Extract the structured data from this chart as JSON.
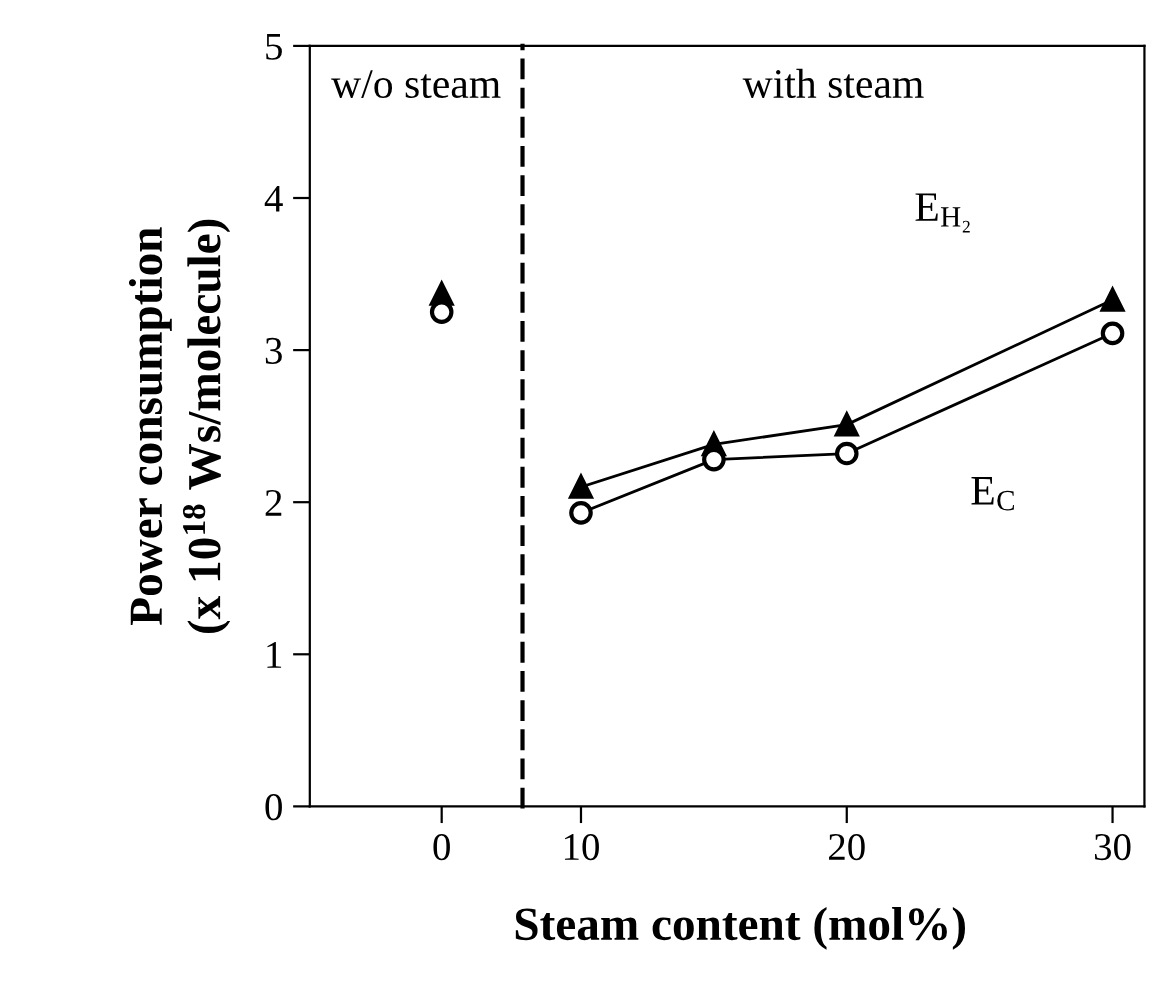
{
  "chart_data": [
    {
      "type": "scatter",
      "categories": [
        "0"
      ],
      "ylabel": "Power consumption\n(x 10$^{18}$ Ws/molecule)",
      "ylim": [
        0,
        5
      ],
      "yticks": [
        0,
        1,
        2,
        3,
        4,
        5
      ],
      "annotations": [
        "w/o steam"
      ],
      "series": [
        {
          "color": "#000000",
          "marker": "triangle",
          "values": [
            3.37
          ]
        },
        {
          "color": "#000000",
          "marker": "circle",
          "values": [
            3.25
          ]
        }
      ]
    },
    {
      "type": "line",
      "x": [
        10,
        15,
        20,
        30
      ],
      "xlim": [
        7.8,
        31.2
      ],
      "xticks": [
        10,
        20,
        30
      ],
      "ylim": [
        0,
        5
      ],
      "tick_labels": "x",
      "xlabel": "Steam content (mol%)",
      "annotations": [
        "with steam"
      ],
      "series": [
        {
          "name": "E$_{H₂}$",
          "color": "#000000",
          "marker": "triangle",
          "values": [
            2.1,
            2.38,
            2.51,
            3.33
          ]
        },
        {
          "name": "E$_{C}$",
          "color": "#000000",
          "marker": "circle",
          "values": [
            1.93,
            2.28,
            2.32,
            3.11
          ]
        }
      ]
    }
  ]
}
